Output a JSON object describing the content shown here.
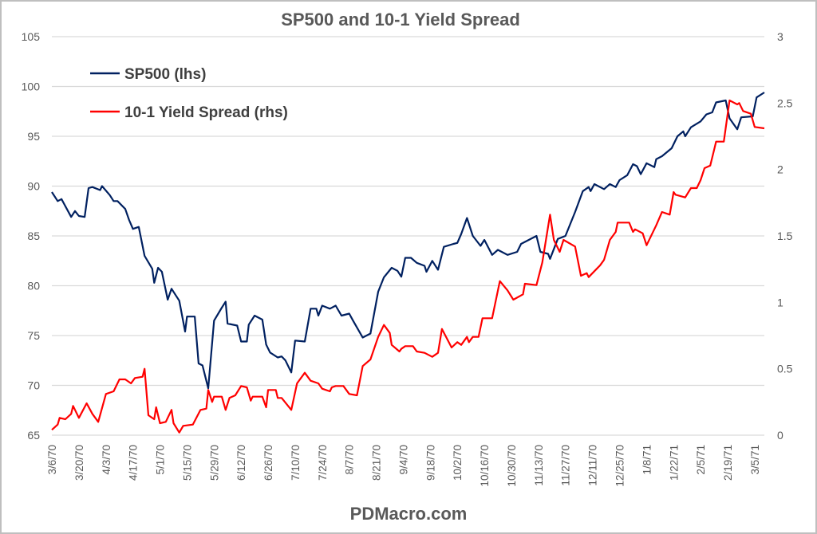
{
  "chart_data": {
    "type": "line",
    "title": "SP500 and 10-1 Yield Spread",
    "footer": "PDMacro.com",
    "grid": true,
    "legend_position": "top-left",
    "y_left": {
      "min": 65,
      "max": 105,
      "step": 5,
      "ticks": [
        "65",
        "70",
        "75",
        "80",
        "85",
        "90",
        "95",
        "100",
        "105"
      ]
    },
    "y_right": {
      "min": 0,
      "max": 3,
      "step": 0.5,
      "ticks": [
        "0",
        "0.5",
        "1",
        "1.5",
        "2",
        "2.5",
        "3"
      ]
    },
    "x_ticks": [
      "3/6/70",
      "3/20/70",
      "4/3/70",
      "4/17/70",
      "5/1/70",
      "5/15/70",
      "5/29/70",
      "6/12/70",
      "6/26/70",
      "7/10/70",
      "7/24/70",
      "8/7/70",
      "8/21/70",
      "9/4/70",
      "9/18/70",
      "10/2/70",
      "10/16/70",
      "10/30/70",
      "11/13/70",
      "11/27/70",
      "12/11/70",
      "12/25/70",
      "1/8/71",
      "1/22/71",
      "2/5/71",
      "2/19/71",
      "3/5/71"
    ],
    "x_range": [
      "1970-03-06",
      "1971-03-10"
    ],
    "series": [
      {
        "name": "SP500 (lhs)",
        "axis": "left",
        "color": "#002060",
        "points": [
          [
            "1970-03-06",
            89.4
          ],
          [
            "1970-03-09",
            88.5
          ],
          [
            "1970-03-11",
            88.7
          ],
          [
            "1970-03-16",
            86.9
          ],
          [
            "1970-03-18",
            87.5
          ],
          [
            "1970-03-20",
            87.0
          ],
          [
            "1970-03-23",
            86.9
          ],
          [
            "1970-03-25",
            89.8
          ],
          [
            "1970-03-27",
            89.9
          ],
          [
            "1970-03-31",
            89.6
          ],
          [
            "1970-04-01",
            90.0
          ],
          [
            "1970-04-05",
            89.1
          ],
          [
            "1970-04-07",
            88.5
          ],
          [
            "1970-04-09",
            88.5
          ],
          [
            "1970-04-13",
            87.7
          ],
          [
            "1970-04-15",
            86.6
          ],
          [
            "1970-04-17",
            85.7
          ],
          [
            "1970-04-20",
            85.9
          ],
          [
            "1970-04-23",
            83.0
          ],
          [
            "1970-04-27",
            81.7
          ],
          [
            "1970-04-28",
            80.3
          ],
          [
            "1970-04-30",
            81.8
          ],
          [
            "1970-05-02",
            81.4
          ],
          [
            "1970-05-05",
            78.6
          ],
          [
            "1970-05-07",
            79.7
          ],
          [
            "1970-05-11",
            78.5
          ],
          [
            "1970-05-14",
            75.4
          ],
          [
            "1970-05-15",
            76.9
          ],
          [
            "1970-05-19",
            76.9
          ],
          [
            "1970-05-21",
            72.2
          ],
          [
            "1970-05-23",
            72.0
          ],
          [
            "1970-05-26",
            69.7
          ],
          [
            "1970-05-29",
            76.5
          ],
          [
            "1970-06-02",
            77.8
          ],
          [
            "1970-06-04",
            78.4
          ],
          [
            "1970-06-05",
            76.2
          ],
          [
            "1970-06-10",
            76.0
          ],
          [
            "1970-06-12",
            74.4
          ],
          [
            "1970-06-15",
            74.4
          ],
          [
            "1970-06-16",
            76.1
          ],
          [
            "1970-06-19",
            77.0
          ],
          [
            "1970-06-23",
            76.6
          ],
          [
            "1970-06-25",
            74.1
          ],
          [
            "1970-06-27",
            73.3
          ],
          [
            "1970-07-01",
            72.8
          ],
          [
            "1970-07-03",
            72.9
          ],
          [
            "1970-07-05",
            72.5
          ],
          [
            "1970-07-08",
            71.3
          ],
          [
            "1970-07-10",
            74.5
          ],
          [
            "1970-07-15",
            74.4
          ],
          [
            "1970-07-18",
            77.7
          ],
          [
            "1970-07-21",
            77.7
          ],
          [
            "1970-07-22",
            77.0
          ],
          [
            "1970-07-24",
            78.0
          ],
          [
            "1970-07-28",
            77.7
          ],
          [
            "1970-07-31",
            78.0
          ],
          [
            "1970-08-03",
            77.0
          ],
          [
            "1970-08-07",
            77.2
          ],
          [
            "1970-08-09",
            76.5
          ],
          [
            "1970-08-14",
            74.8
          ],
          [
            "1970-08-18",
            75.2
          ],
          [
            "1970-08-22",
            79.4
          ],
          [
            "1970-08-25",
            80.85
          ],
          [
            "1970-08-29",
            81.8
          ],
          [
            "1970-09-01",
            81.5
          ],
          [
            "1970-09-03",
            80.9
          ],
          [
            "1970-09-05",
            82.8
          ],
          [
            "1970-09-08",
            82.8
          ],
          [
            "1970-09-11",
            82.3
          ],
          [
            "1970-09-15",
            82.0
          ],
          [
            "1970-09-16",
            81.4
          ],
          [
            "1970-09-19",
            82.5
          ],
          [
            "1970-09-22",
            81.6
          ],
          [
            "1970-09-25",
            83.9
          ],
          [
            "1970-09-30",
            84.2
          ],
          [
            "1970-10-02",
            84.3
          ],
          [
            "1970-10-04",
            85.2
          ],
          [
            "1970-10-07",
            86.8
          ],
          [
            "1970-10-10",
            85.0
          ],
          [
            "1970-10-14",
            84.0
          ],
          [
            "1970-10-16",
            84.6
          ],
          [
            "1970-10-20",
            83.1
          ],
          [
            "1970-10-23",
            83.6
          ],
          [
            "1970-10-28",
            83.1
          ],
          [
            "1970-11-02",
            83.4
          ],
          [
            "1970-11-04",
            84.2
          ],
          [
            "1970-11-12",
            85.0
          ],
          [
            "1970-11-14",
            83.4
          ],
          [
            "1970-11-18",
            83.2
          ],
          [
            "1970-11-19",
            82.7
          ],
          [
            "1970-11-23",
            84.7
          ],
          [
            "1970-11-27",
            85.0
          ],
          [
            "1970-12-02",
            87.4
          ],
          [
            "1970-12-06",
            89.5
          ],
          [
            "1970-12-09",
            89.9
          ],
          [
            "1970-12-10",
            89.5
          ],
          [
            "1970-12-12",
            90.2
          ],
          [
            "1970-12-17",
            89.7
          ],
          [
            "1970-12-20",
            90.2
          ],
          [
            "1970-12-23",
            89.9
          ],
          [
            "1970-12-25",
            90.6
          ],
          [
            "1970-12-29",
            91.1
          ],
          [
            "1971-01-01",
            92.2
          ],
          [
            "1971-01-03",
            92.0
          ],
          [
            "1971-01-05",
            91.2
          ],
          [
            "1971-01-08",
            92.3
          ],
          [
            "1971-01-12",
            91.9
          ],
          [
            "1971-01-13",
            92.7
          ],
          [
            "1971-01-16",
            93.0
          ],
          [
            "1971-01-21",
            93.8
          ],
          [
            "1971-01-24",
            95.0
          ],
          [
            "1971-01-27",
            95.5
          ],
          [
            "1971-01-28",
            95.0
          ],
          [
            "1971-01-31",
            95.9
          ],
          [
            "1971-02-05",
            96.5
          ],
          [
            "1971-02-08",
            97.2
          ],
          [
            "1971-02-11",
            97.4
          ],
          [
            "1971-02-13",
            98.4
          ],
          [
            "1971-02-18",
            98.6
          ],
          [
            "1971-02-20",
            96.8
          ],
          [
            "1971-02-24",
            95.7
          ],
          [
            "1971-02-26",
            96.9
          ],
          [
            "1971-03-04",
            97.0
          ],
          [
            "1971-03-06",
            98.9
          ],
          [
            "1971-03-10",
            99.4
          ]
        ]
      },
      {
        "name": "10-1 Yield Spread (rhs)",
        "axis": "right",
        "color": "#ff0000",
        "points": [
          [
            "1970-03-06",
            0.04
          ],
          [
            "1970-03-09",
            0.08
          ],
          [
            "1970-03-10",
            0.13
          ],
          [
            "1970-03-13",
            0.12
          ],
          [
            "1970-03-16",
            0.16
          ],
          [
            "1970-03-17",
            0.22
          ],
          [
            "1970-03-20",
            0.13
          ],
          [
            "1970-03-24",
            0.24
          ],
          [
            "1970-03-27",
            0.16
          ],
          [
            "1970-03-30",
            0.1
          ],
          [
            "1970-04-03",
            0.31
          ],
          [
            "1970-04-07",
            0.33
          ],
          [
            "1970-04-10",
            0.42
          ],
          [
            "1970-04-13",
            0.42
          ],
          [
            "1970-04-16",
            0.39
          ],
          [
            "1970-04-18",
            0.43
          ],
          [
            "1970-04-22",
            0.44
          ],
          [
            "1970-04-23",
            0.5
          ],
          [
            "1970-04-25",
            0.15
          ],
          [
            "1970-04-28",
            0.12
          ],
          [
            "1970-04-29",
            0.21
          ],
          [
            "1970-05-01",
            0.09
          ],
          [
            "1970-05-04",
            0.1
          ],
          [
            "1970-05-07",
            0.19
          ],
          [
            "1970-05-08",
            0.09
          ],
          [
            "1970-05-11",
            0.02
          ],
          [
            "1970-05-13",
            0.07
          ],
          [
            "1970-05-18",
            0.08
          ],
          [
            "1970-05-22",
            0.19
          ],
          [
            "1970-05-25",
            0.2
          ],
          [
            "1970-05-26",
            0.34
          ],
          [
            "1970-05-28",
            0.25
          ],
          [
            "1970-05-29",
            0.29
          ],
          [
            "1970-06-02",
            0.29
          ],
          [
            "1970-06-04",
            0.19
          ],
          [
            "1970-06-06",
            0.28
          ],
          [
            "1970-06-09",
            0.3
          ],
          [
            "1970-06-12",
            0.37
          ],
          [
            "1970-06-15",
            0.36
          ],
          [
            "1970-06-17",
            0.26
          ],
          [
            "1970-06-18",
            0.29
          ],
          [
            "1970-06-23",
            0.29
          ],
          [
            "1970-06-25",
            0.21
          ],
          [
            "1970-06-26",
            0.34
          ],
          [
            "1970-06-30",
            0.34
          ],
          [
            "1970-07-01",
            0.28
          ],
          [
            "1970-07-03",
            0.28
          ],
          [
            "1970-07-08",
            0.19
          ],
          [
            "1970-07-11",
            0.39
          ],
          [
            "1970-07-15",
            0.47
          ],
          [
            "1970-07-18",
            0.41
          ],
          [
            "1970-07-22",
            0.39
          ],
          [
            "1970-07-24",
            0.35
          ],
          [
            "1970-07-28",
            0.33
          ],
          [
            "1970-07-29",
            0.36
          ],
          [
            "1970-07-31",
            0.37
          ],
          [
            "1970-08-04",
            0.37
          ],
          [
            "1970-08-07",
            0.31
          ],
          [
            "1970-08-11",
            0.3
          ],
          [
            "1970-08-14",
            0.52
          ],
          [
            "1970-08-18",
            0.57
          ],
          [
            "1970-08-22",
            0.74
          ],
          [
            "1970-08-25",
            0.83
          ],
          [
            "1970-08-28",
            0.77
          ],
          [
            "1970-08-29",
            0.68
          ],
          [
            "1970-09-02",
            0.63
          ],
          [
            "1970-09-03",
            0.65
          ],
          [
            "1970-09-05",
            0.67
          ],
          [
            "1970-09-09",
            0.67
          ],
          [
            "1970-09-11",
            0.63
          ],
          [
            "1970-09-15",
            0.62
          ],
          [
            "1970-09-19",
            0.59
          ],
          [
            "1970-09-22",
            0.62
          ],
          [
            "1970-09-24",
            0.8
          ],
          [
            "1970-09-29",
            0.66
          ],
          [
            "1970-10-02",
            0.7
          ],
          [
            "1970-10-04",
            0.68
          ],
          [
            "1970-10-07",
            0.74
          ],
          [
            "1970-10-08",
            0.7
          ],
          [
            "1970-10-10",
            0.74
          ],
          [
            "1970-10-13",
            0.74
          ],
          [
            "1970-10-15",
            0.88
          ],
          [
            "1970-10-20",
            0.88
          ],
          [
            "1970-10-24",
            1.16
          ],
          [
            "1970-10-28",
            1.09
          ],
          [
            "1970-10-31",
            1.02
          ],
          [
            "1970-11-05",
            1.06
          ],
          [
            "1970-11-06",
            1.14
          ],
          [
            "1970-11-12",
            1.13
          ],
          [
            "1970-11-15",
            1.3
          ],
          [
            "1970-11-19",
            1.66
          ],
          [
            "1970-11-21",
            1.47
          ],
          [
            "1970-11-24",
            1.38
          ],
          [
            "1970-11-26",
            1.47
          ],
          [
            "1970-12-02",
            1.42
          ],
          [
            "1970-12-05",
            1.2
          ],
          [
            "1970-12-08",
            1.22
          ],
          [
            "1970-12-09",
            1.19
          ],
          [
            "1970-12-13",
            1.25
          ],
          [
            "1970-12-15",
            1.28
          ],
          [
            "1970-12-17",
            1.32
          ],
          [
            "1970-12-20",
            1.47
          ],
          [
            "1970-12-23",
            1.53
          ],
          [
            "1970-12-24",
            1.6
          ],
          [
            "1970-12-30",
            1.6
          ],
          [
            "1971-01-01",
            1.53
          ],
          [
            "1971-01-02",
            1.55
          ],
          [
            "1971-01-06",
            1.52
          ],
          [
            "1971-01-08",
            1.43
          ],
          [
            "1971-01-13",
            1.58
          ],
          [
            "1971-01-16",
            1.68
          ],
          [
            "1971-01-20",
            1.66
          ],
          [
            "1971-01-22",
            1.83
          ],
          [
            "1971-01-23",
            1.81
          ],
          [
            "1971-01-28",
            1.79
          ],
          [
            "1971-01-31",
            1.86
          ],
          [
            "1971-02-03",
            1.86
          ],
          [
            "1971-02-05",
            1.92
          ],
          [
            "1971-02-07",
            2.01
          ],
          [
            "1971-02-10",
            2.03
          ],
          [
            "1971-02-12",
            2.15
          ],
          [
            "1971-02-13",
            2.21
          ],
          [
            "1971-02-17",
            2.21
          ],
          [
            "1971-02-20",
            2.52
          ],
          [
            "1971-02-24",
            2.49
          ],
          [
            "1971-02-25",
            2.5
          ],
          [
            "1971-02-27",
            2.44
          ],
          [
            "1971-03-03",
            2.42
          ],
          [
            "1971-03-05",
            2.32
          ],
          [
            "1971-03-10",
            2.31
          ]
        ]
      }
    ]
  }
}
